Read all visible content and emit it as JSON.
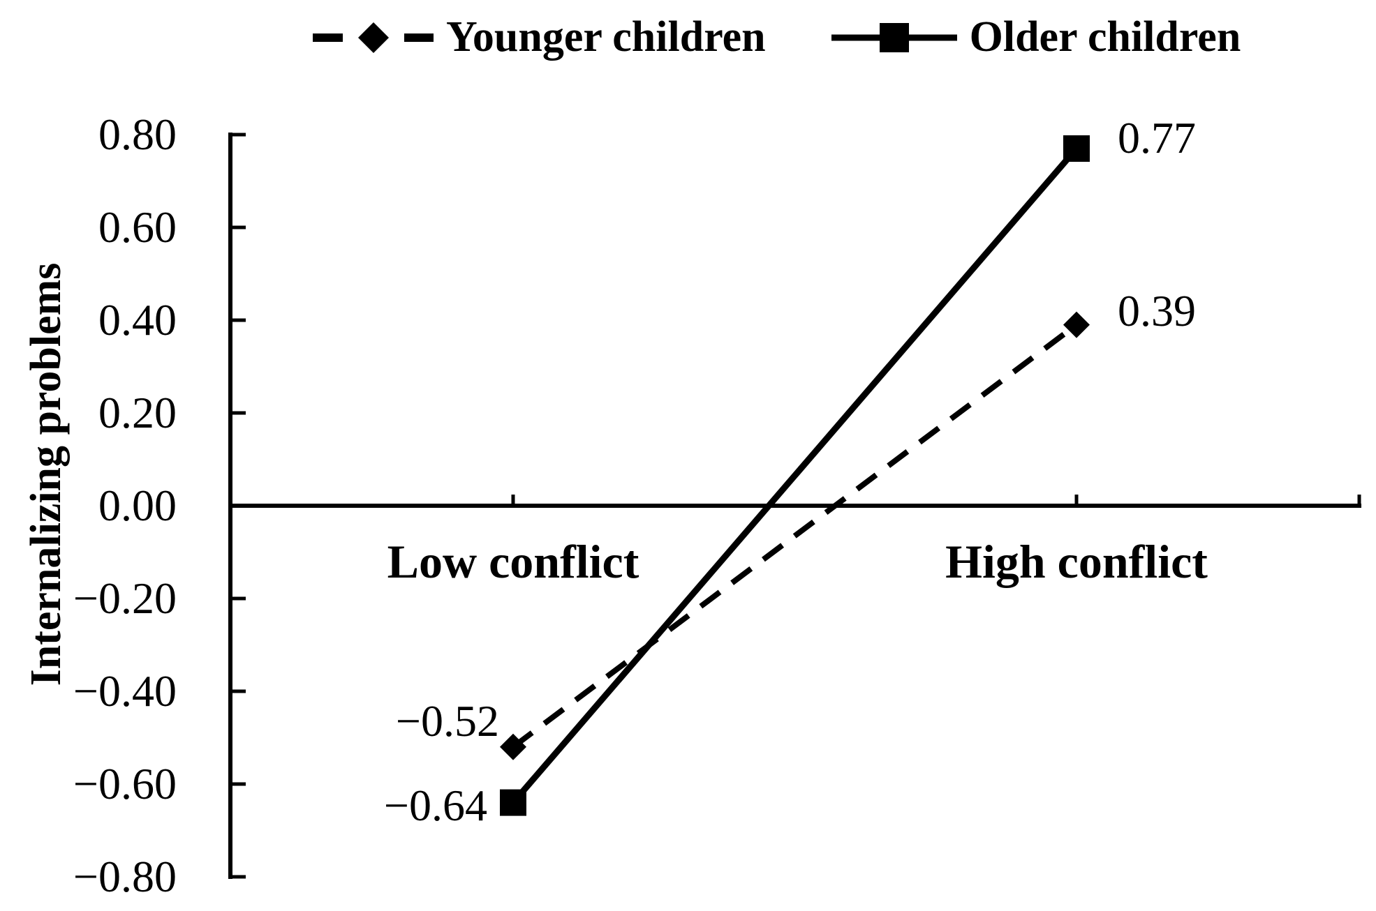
{
  "chart_data": {
    "type": "line",
    "title": "",
    "categories": [
      "Low conflict",
      "High conflict"
    ],
    "series": [
      {
        "name": "Younger children",
        "values": [
          -0.52,
          0.39
        ],
        "point_labels": [
          "−0.52",
          "0.39"
        ],
        "line_style": "dashed",
        "marker": "diamond"
      },
      {
        "name": "Older children",
        "values": [
          -0.64,
          0.77
        ],
        "point_labels": [
          "−0.64",
          "0.77"
        ],
        "line_style": "solid",
        "marker": "square"
      }
    ],
    "xlabel": "",
    "ylabel": "Internalizing problems",
    "ylim": [
      -0.8,
      0.8
    ],
    "ytick_step": 0.2,
    "yticks": [
      "0.80",
      "0.60",
      "0.40",
      "0.20",
      "0.00",
      "−0.20",
      "−0.40",
      "−0.60",
      "−0.80"
    ],
    "grid": false,
    "legend_position": "top",
    "axis_color": "#000000",
    "background": "#ffffff"
  }
}
